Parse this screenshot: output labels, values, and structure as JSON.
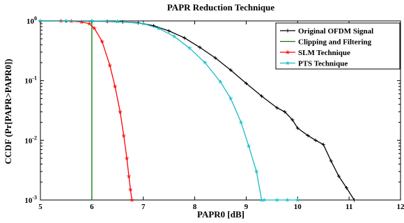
{
  "chart_data": {
    "type": "line",
    "title": "PAPR Reduction Technique",
    "xlabel": "PAPR0 [dB]",
    "ylabel": "CCDF (Pr[PAPR>PAPR0])",
    "xlim": [
      5,
      12
    ],
    "ylim": [
      0.001,
      1
    ],
    "yscale": "log",
    "x_ticks": [
      "5",
      "6",
      "7",
      "8",
      "9",
      "10",
      "11",
      "12"
    ],
    "y_ticks": [
      {
        "base": "10",
        "exp": "0"
      },
      {
        "base": "10",
        "exp": "-1"
      },
      {
        "base": "10",
        "exp": "-2"
      },
      {
        "base": "10",
        "exp": "-3"
      }
    ],
    "legend_position": "top-right",
    "grid": false,
    "series": [
      {
        "name": "Original OFDM Signal",
        "color": "#000000",
        "marker": "plus",
        "x": [
          5.0,
          5.5,
          6.0,
          6.3,
          6.6,
          6.9,
          7.2,
          7.5,
          7.8,
          8.1,
          8.4,
          8.7,
          9.0,
          9.3,
          9.6,
          9.75,
          9.9,
          10.0,
          10.2,
          10.35,
          10.5,
          10.65,
          10.8,
          10.95,
          11.1
        ],
        "y": [
          1.0,
          1.0,
          0.99,
          0.98,
          0.96,
          0.93,
          0.83,
          0.68,
          0.52,
          0.36,
          0.24,
          0.15,
          0.09,
          0.055,
          0.035,
          0.03,
          0.022,
          0.016,
          0.012,
          0.01,
          0.0085,
          0.0045,
          0.0025,
          0.0016,
          0.001
        ]
      },
      {
        "name": "Clipping and Filtering",
        "color": "#008000",
        "marker": "none",
        "x": [
          5.0,
          5.5,
          5.99,
          6.0,
          6.0
        ],
        "y": [
          1.0,
          1.0,
          1.0,
          1.0,
          0.001
        ]
      },
      {
        "name": "SLM Technique",
        "color": "#ff0000",
        "marker": "star",
        "x": [
          5.0,
          5.4,
          5.6,
          5.8,
          5.95,
          6.05,
          6.2,
          6.35,
          6.45,
          6.55,
          6.62,
          6.68,
          6.72,
          6.75,
          6.78
        ],
        "y": [
          1.0,
          1.0,
          0.99,
          0.96,
          0.9,
          0.75,
          0.45,
          0.18,
          0.08,
          0.03,
          0.012,
          0.005,
          0.0025,
          0.0015,
          0.001
        ]
      },
      {
        "name": "PTS Technique",
        "color": "#17bcc4",
        "marker": "star",
        "x": [
          5.0,
          5.5,
          6.0,
          6.5,
          7.0,
          7.3,
          7.6,
          7.9,
          8.2,
          8.5,
          8.7,
          8.9,
          9.05,
          9.2,
          9.3,
          9.35,
          9.6,
          9.8,
          10.0
        ],
        "y": [
          1.0,
          1.0,
          1.0,
          0.98,
          0.9,
          0.75,
          0.55,
          0.35,
          0.2,
          0.095,
          0.05,
          0.02,
          0.008,
          0.003,
          0.001,
          0.001,
          0.001,
          0.001,
          0.001
        ]
      }
    ]
  }
}
